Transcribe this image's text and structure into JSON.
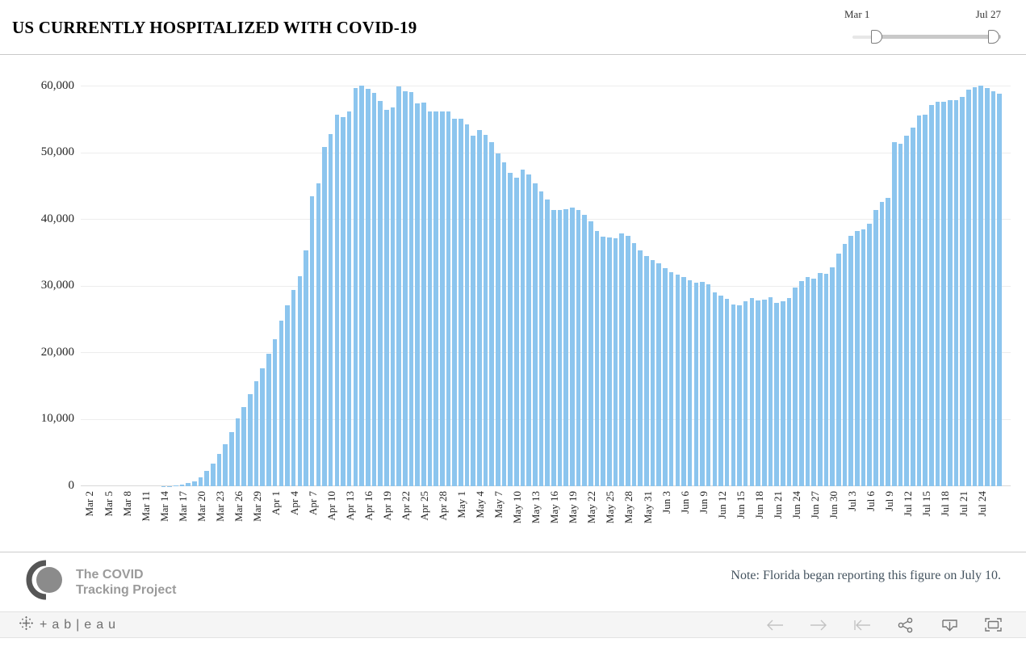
{
  "header": {
    "title": "US CURRENTLY HOSPITALIZED WITH COVID-19",
    "range_slider": {
      "start_label": "Mar 1",
      "end_label": "Jul 27"
    }
  },
  "chart_data": {
    "type": "bar",
    "title": "US CURRENTLY HOSPITALIZED WITH COVID-19",
    "bar_color": "#8cc5ee",
    "ylim": [
      0,
      60000
    ],
    "grid": "horizontal",
    "legend": "none",
    "y_ticks": [
      0,
      10000,
      20000,
      30000,
      40000,
      50000,
      60000
    ],
    "y_tick_labels": [
      "0",
      "10,000",
      "20,000",
      "30,000",
      "40,000",
      "50,000",
      "60,000"
    ],
    "x_tick_start_index": 1,
    "x_tick_step": 3,
    "x_tick_labels": [
      "Mar 2",
      "Mar 5",
      "Mar 8",
      "Mar 11",
      "Mar 14",
      "Mar 17",
      "Mar 20",
      "Mar 23",
      "Mar 26",
      "Mar 29",
      "Apr 1",
      "Apr 4",
      "Apr 7",
      "Apr 10",
      "Apr 13",
      "Apr 16",
      "Apr 19",
      "Apr 22",
      "Apr 25",
      "Apr 28",
      "May 1",
      "May 4",
      "May 7",
      "May 10",
      "May 13",
      "May 16",
      "May 19",
      "May 22",
      "May 25",
      "May 28",
      "May 31",
      "Jun 3",
      "Jun 6",
      "Jun 9",
      "Jun 12",
      "Jun 15",
      "Jun 18",
      "Jun 21",
      "Jun 24",
      "Jun 27",
      "Jun 30",
      "Jul 3",
      "Jul 6",
      "Jul 9",
      "Jul 12",
      "Jul 15",
      "Jul 18",
      "Jul 21",
      "Jul 24"
    ],
    "x": [
      "Mar 1",
      "Mar 2",
      "Mar 3",
      "Mar 4",
      "Mar 5",
      "Mar 6",
      "Mar 7",
      "Mar 8",
      "Mar 9",
      "Mar 10",
      "Mar 11",
      "Mar 12",
      "Mar 13",
      "Mar 14",
      "Mar 15",
      "Mar 16",
      "Mar 17",
      "Mar 18",
      "Mar 19",
      "Mar 20",
      "Mar 21",
      "Mar 22",
      "Mar 23",
      "Mar 24",
      "Mar 25",
      "Mar 26",
      "Mar 27",
      "Mar 28",
      "Mar 29",
      "Mar 30",
      "Mar 31",
      "Apr 1",
      "Apr 2",
      "Apr 3",
      "Apr 4",
      "Apr 5",
      "Apr 6",
      "Apr 7",
      "Apr 8",
      "Apr 9",
      "Apr 10",
      "Apr 11",
      "Apr 12",
      "Apr 13",
      "Apr 14",
      "Apr 15",
      "Apr 16",
      "Apr 17",
      "Apr 18",
      "Apr 19",
      "Apr 20",
      "Apr 21",
      "Apr 22",
      "Apr 23",
      "Apr 24",
      "Apr 25",
      "Apr 26",
      "Apr 27",
      "Apr 28",
      "Apr 29",
      "Apr 30",
      "May 1",
      "May 2",
      "May 3",
      "May 4",
      "May 5",
      "May 6",
      "May 7",
      "May 8",
      "May 9",
      "May 10",
      "May 11",
      "May 12",
      "May 13",
      "May 14",
      "May 15",
      "May 16",
      "May 17",
      "May 18",
      "May 19",
      "May 20",
      "May 21",
      "May 22",
      "May 23",
      "May 24",
      "May 25",
      "May 26",
      "May 27",
      "May 28",
      "May 29",
      "May 30",
      "May 31",
      "Jun 1",
      "Jun 2",
      "Jun 3",
      "Jun 4",
      "Jun 5",
      "Jun 6",
      "Jun 7",
      "Jun 8",
      "Jun 9",
      "Jun 10",
      "Jun 11",
      "Jun 12",
      "Jun 13",
      "Jun 14",
      "Jun 15",
      "Jun 16",
      "Jun 17",
      "Jun 18",
      "Jun 19",
      "Jun 20",
      "Jun 21",
      "Jun 22",
      "Jun 23",
      "Jun 24",
      "Jun 25",
      "Jun 26",
      "Jun 27",
      "Jun 28",
      "Jun 29",
      "Jun 30",
      "Jul 1",
      "Jul 2",
      "Jul 3",
      "Jul 4",
      "Jul 5",
      "Jul 6",
      "Jul 7",
      "Jul 8",
      "Jul 9",
      "Jul 10",
      "Jul 11",
      "Jul 12",
      "Jul 13",
      "Jul 14",
      "Jul 15",
      "Jul 16",
      "Jul 17",
      "Jul 18",
      "Jul 19",
      "Jul 20",
      "Jul 21",
      "Jul 22",
      "Jul 23",
      "Jul 24",
      "Jul 25",
      "Jul 26",
      "Jul 27"
    ],
    "values": [
      0,
      0,
      0,
      0,
      0,
      0,
      0,
      0,
      0,
      0,
      0,
      0,
      0,
      30,
      60,
      150,
      300,
      450,
      700,
      1300,
      2250,
      3450,
      4900,
      6300,
      8100,
      10200,
      11900,
      13800,
      15800,
      17700,
      19900,
      22100,
      24800,
      27200,
      29500,
      31500,
      35400,
      43500,
      45500,
      50900,
      52800,
      55700,
      55400,
      56300,
      59700,
      60100,
      59600,
      59000,
      57800,
      56500,
      56900,
      60000,
      59300,
      59100,
      57400,
      57600,
      56200,
      56300,
      56200,
      56300,
      55200,
      55200,
      54300,
      52600,
      53400,
      52700,
      51600,
      49900,
      48600,
      47000,
      46300,
      47500,
      46800,
      45400,
      44200,
      43000,
      41500,
      41400,
      41600,
      41800,
      41500,
      40700,
      39700,
      38300,
      37400,
      37300,
      37200,
      37900,
      37600,
      36500,
      35400,
      34600,
      33900,
      33500,
      32700,
      32100,
      31800,
      31400,
      30900,
      30600,
      30700,
      30300,
      29100,
      28600,
      28100,
      27300,
      27200,
      27700,
      28200,
      27900,
      28000,
      28400,
      27500,
      27700,
      28200,
      29800,
      30800,
      31400,
      31200,
      32000,
      31900,
      32900,
      34900,
      36400,
      37600,
      38300,
      38500,
      39400,
      41400,
      42700,
      43300,
      51600,
      51400,
      52600,
      53800,
      55600,
      55800,
      57200,
      57700,
      57700,
      57900,
      57900,
      58400,
      59500,
      59900,
      60100,
      59700,
      59300,
      58900
    ]
  },
  "footer": {
    "brand_name_line1": "The COVID",
    "brand_name_line2": "Tracking Project",
    "note": "Note: Florida began reporting this figure on July 10."
  },
  "tableau_bar": {
    "wordmark": "+ab|eau",
    "icons": [
      "undo",
      "redo",
      "reset",
      "share",
      "download",
      "fullscreen"
    ]
  }
}
